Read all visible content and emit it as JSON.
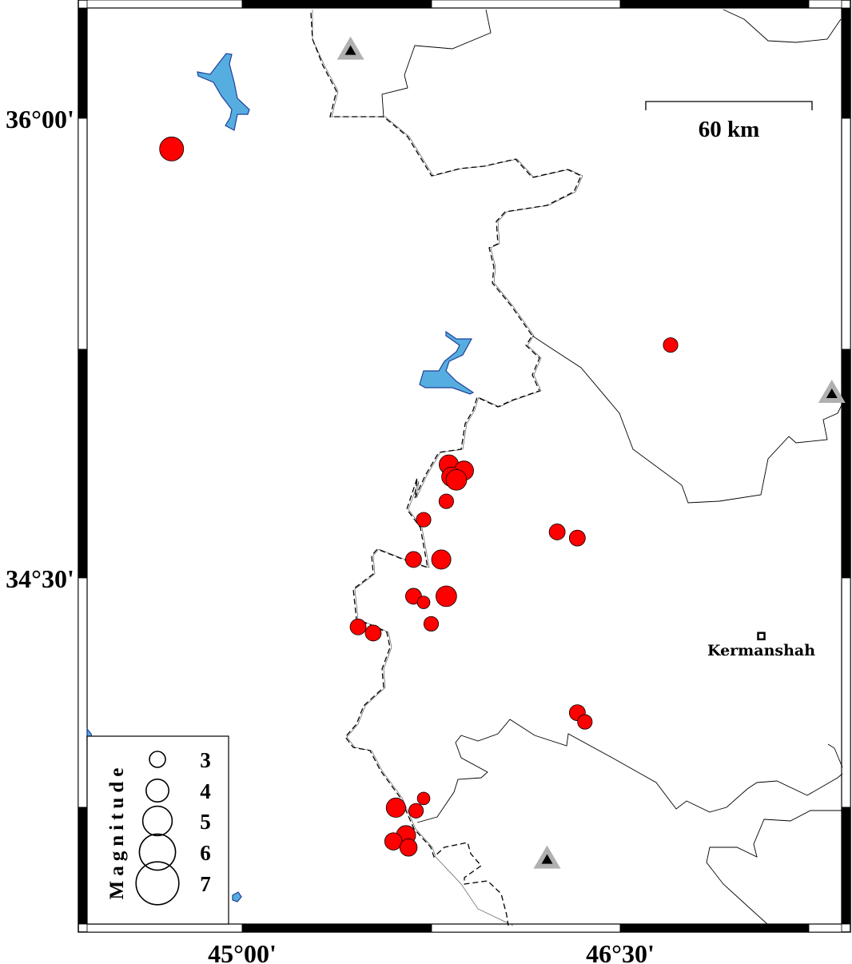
{
  "map": {
    "lat_labels": [
      "36°00'",
      "34°30'"
    ],
    "lon_labels": [
      "45°00'",
      "46°30'"
    ],
    "scale_bar_label": "60 km",
    "colors": {
      "event": "#ff0000",
      "lake": "#56aee0",
      "lake_outline": "#1f3f9a",
      "volcano_outer": "#b0b0b0",
      "volcano_inner": "#000000"
    },
    "city": {
      "name": "Kermanshah",
      "lon": 47.06,
      "lat": 34.31
    },
    "volcanoes": [
      {
        "lon": 45.43,
        "lat": 36.22
      },
      {
        "lon": 47.34,
        "lat": 35.1
      },
      {
        "lon": 46.21,
        "lat": 33.58
      }
    ],
    "events": [
      {
        "lon": 44.72,
        "lat": 35.9,
        "mag": 4.2
      },
      {
        "lon": 46.7,
        "lat": 35.26,
        "mag": 2.8
      },
      {
        "lon": 45.82,
        "lat": 34.87,
        "mag": 3.5
      },
      {
        "lon": 45.88,
        "lat": 34.85,
        "mag": 3.5
      },
      {
        "lon": 45.83,
        "lat": 34.83,
        "mag": 3.5
      },
      {
        "lon": 45.85,
        "lat": 34.82,
        "mag": 3.7
      },
      {
        "lon": 45.81,
        "lat": 34.75,
        "mag": 2.8
      },
      {
        "lon": 45.72,
        "lat": 34.69,
        "mag": 2.8
      },
      {
        "lon": 46.25,
        "lat": 34.65,
        "mag": 3.0
      },
      {
        "lon": 46.33,
        "lat": 34.63,
        "mag": 3.0
      },
      {
        "lon": 45.79,
        "lat": 34.56,
        "mag": 3.5
      },
      {
        "lon": 45.68,
        "lat": 34.56,
        "mag": 3.0
      },
      {
        "lon": 45.81,
        "lat": 34.44,
        "mag": 3.7
      },
      {
        "lon": 45.68,
        "lat": 34.44,
        "mag": 3.0
      },
      {
        "lon": 45.72,
        "lat": 34.42,
        "mag": 2.5
      },
      {
        "lon": 45.75,
        "lat": 34.35,
        "mag": 2.8
      },
      {
        "lon": 45.46,
        "lat": 34.34,
        "mag": 3.0
      },
      {
        "lon": 45.52,
        "lat": 34.32,
        "mag": 3.0
      },
      {
        "lon": 46.33,
        "lat": 34.06,
        "mag": 3.0
      },
      {
        "lon": 46.36,
        "lat": 34.03,
        "mag": 2.8
      },
      {
        "lon": 45.61,
        "lat": 33.75,
        "mag": 3.5
      },
      {
        "lon": 45.72,
        "lat": 33.78,
        "mag": 2.5
      },
      {
        "lon": 45.69,
        "lat": 33.74,
        "mag": 2.8
      },
      {
        "lon": 45.65,
        "lat": 33.66,
        "mag": 3.5
      },
      {
        "lon": 45.6,
        "lat": 33.64,
        "mag": 3.2
      },
      {
        "lon": 45.66,
        "lat": 33.62,
        "mag": 3.2
      }
    ]
  },
  "legend": {
    "title": "Magnitude",
    "items": [
      {
        "mag": 3,
        "label": "3"
      },
      {
        "mag": 4,
        "label": "4"
      },
      {
        "mag": 5,
        "label": "5"
      },
      {
        "mag": 6,
        "label": "6"
      },
      {
        "mag": 7,
        "label": "7"
      }
    ]
  }
}
